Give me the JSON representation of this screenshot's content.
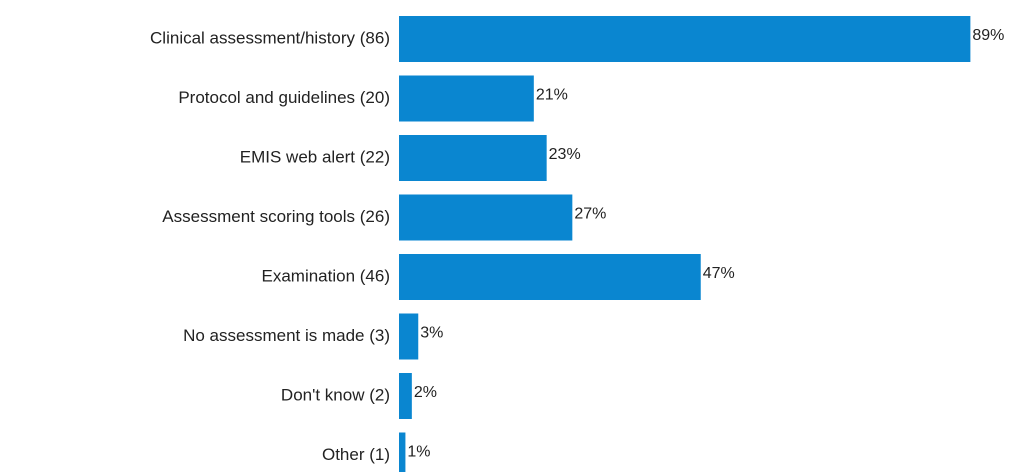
{
  "chart_data": {
    "type": "bar",
    "orientation": "horizontal",
    "categories": [
      "Clinical assessment/history (86)",
      "Protocol and guidelines (20)",
      "EMIS web alert (22)",
      "Assessment scoring tools (26)",
      "Examination  (46)",
      "No assessment is made  (3)",
      "Don't know (2)",
      "Other (1)"
    ],
    "values": [
      89,
      21,
      23,
      27,
      47,
      3,
      2,
      1
    ],
    "value_labels": [
      "89%",
      "21%",
      "23%",
      "27%",
      "47%",
      "3%",
      "2%",
      "1%"
    ],
    "color": "#0a86d0"
  }
}
